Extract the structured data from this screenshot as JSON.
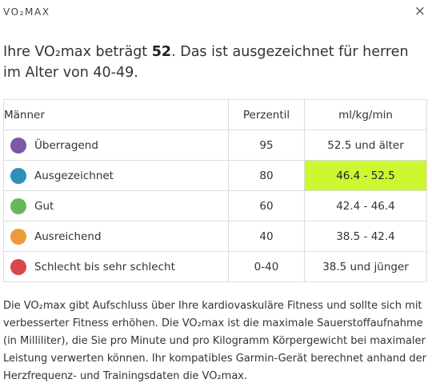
{
  "header": {
    "title": "VO₂MAX",
    "close_glyph": "×"
  },
  "headline": {
    "prefix": "Ihre VO₂max beträgt ",
    "value": "52",
    "suffix": ". Das ist ausgezeichnet für herren im Alter von 40-49."
  },
  "table": {
    "headers": {
      "category": "Männer",
      "percentile": "Perzentil",
      "unit": "ml/kg/min"
    },
    "rows": [
      {
        "label": "Überragend",
        "percentile": "95",
        "range": "52.5 und älter",
        "color": "#7e57a8",
        "highlight": false
      },
      {
        "label": "Ausgezeichnet",
        "percentile": "80",
        "range": "46.4 - 52.5",
        "color": "#2e8fbb",
        "highlight": true
      },
      {
        "label": "Gut",
        "percentile": "60",
        "range": "42.4 - 46.4",
        "color": "#66b95a",
        "highlight": false
      },
      {
        "label": "Ausreichend",
        "percentile": "40",
        "range": "38.5 - 42.4",
        "color": "#ee9a38",
        "highlight": false
      },
      {
        "label": "Schlecht bis sehr schlecht",
        "percentile": "0-40",
        "range": "38.5 und jünger",
        "color": "#d9474a",
        "highlight": false
      }
    ],
    "highlight_color": "#ccf731"
  },
  "description": "Die VO₂max gibt Aufschluss über Ihre kardiovaskuläre Fitness und sollte sich mit verbesserter Fitness erhöhen. Die VO₂max ist die maximale Sauerstoffaufnahme (in Milliliter), die Sie pro Minute und pro Kilogramm Körpergewicht bei maximaler Leistung verwerten können. Ihr kompatibles Garmin-Gerät berechnet anhand der Herzfrequenz- und Trainingsdaten die VO₂max."
}
